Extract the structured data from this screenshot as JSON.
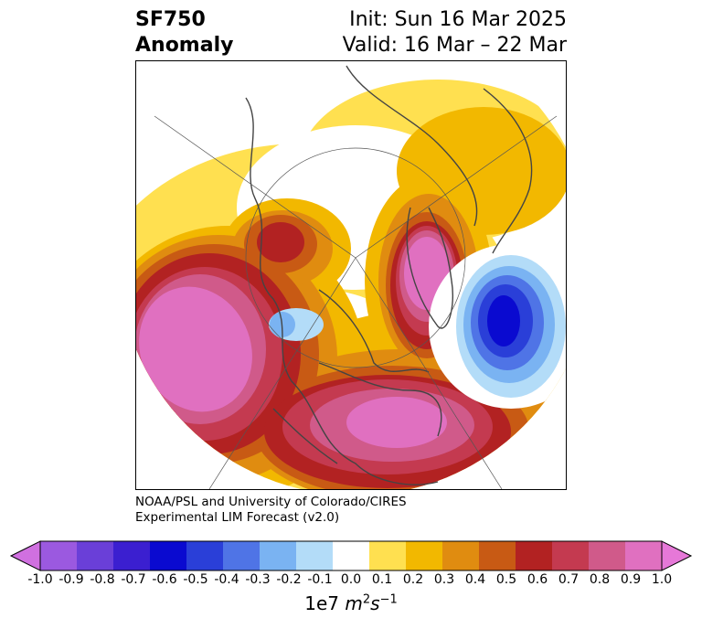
{
  "title": {
    "field": "SF750",
    "kind": "Anomaly",
    "init": "Init: Sun 16 Mar 2025",
    "valid": "Valid: 16 Mar – 22 Mar"
  },
  "credit": {
    "line1": "NOAA/PSL and University of Colorado/CIRES",
    "line2": "Experimental LIM Forecast (v2.0)"
  },
  "colorbar": {
    "ticks": [
      "-1.0",
      "-0.9",
      "-0.8",
      "-0.7",
      "-0.6",
      "-0.5",
      "-0.4",
      "-0.3",
      "-0.2",
      "-0.1",
      "0.0",
      "0.1",
      "0.2",
      "0.3",
      "0.4",
      "0.5",
      "0.6",
      "0.7",
      "0.8",
      "0.9",
      "1.0"
    ],
    "colors": [
      "#9b59e0",
      "#6a3fd8",
      "#3b1fd0",
      "#0a0ad0",
      "#2a3fd8",
      "#4f74e6",
      "#7ab3f2",
      "#b3dcf8",
      "#ffffff",
      "#ffe050",
      "#f2b800",
      "#e08c10",
      "#c85a14",
      "#b22222",
      "#c43a50",
      "#d05a8a",
      "#e070c0"
    ],
    "under_color": "#d070e0",
    "over_color": "#e678d8",
    "units_prefix": "1e7 ",
    "units_m": "m",
    "units_m_exp": "2",
    "units_s": "s",
    "units_s_exp": "−1"
  }
}
